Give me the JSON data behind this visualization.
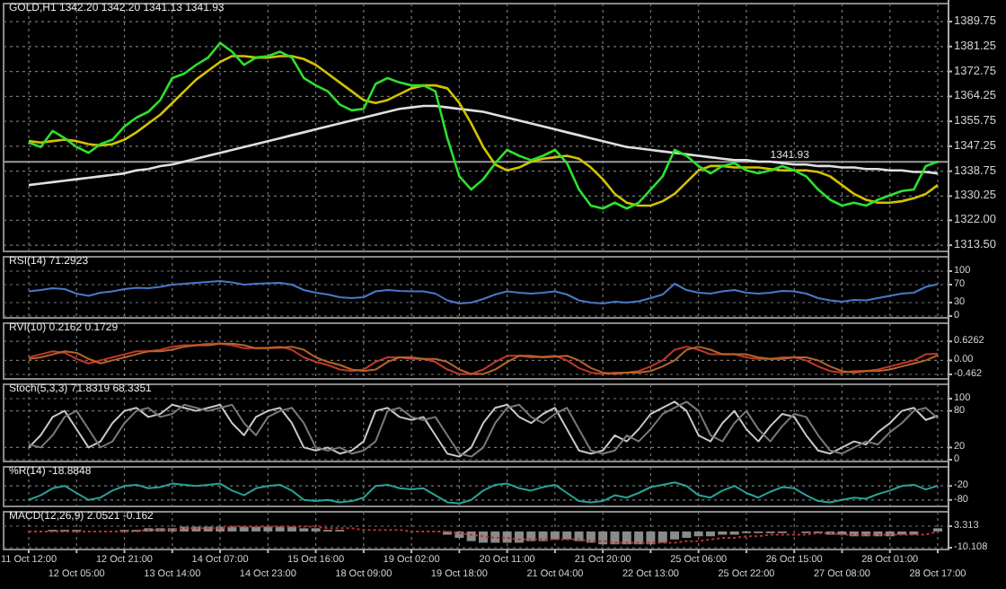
{
  "chart_data": [
    {
      "type": "line",
      "title": "GOLD,H1 1342.20 1342.20 1341.13 1341.93",
      "categories": [
        "11 Oct 12:00",
        null,
        null,
        null,
        "12 Oct 05:00",
        null,
        null,
        null,
        "12 Oct 21:00",
        null,
        null,
        null,
        "13 Oct 14:00",
        null,
        null,
        null,
        "14 Oct 07:00",
        null,
        null,
        null,
        "14 Oct 23:00",
        null,
        null,
        null,
        "15 Oct 16:00",
        null,
        null,
        null,
        "18 Oct 09:00",
        null,
        null,
        null,
        "19 Oct 02:00",
        null,
        null,
        null,
        "19 Oct 18:00",
        null,
        null,
        null,
        "20 Oct 11:00",
        null,
        null,
        null,
        "21 Oct 04:00",
        null,
        null,
        null,
        "21 Oct 20:00",
        null,
        null,
        null,
        "22 Oct 13:00",
        null,
        null,
        null,
        "25 Oct 06:00",
        null,
        null,
        null,
        "25 Oct 22:00",
        null,
        null,
        null,
        "26 Oct 15:00",
        null,
        null,
        null,
        "27 Oct 08:00",
        null,
        null,
        null,
        "28 Oct 01:00",
        null,
        null,
        null,
        "28 Oct 17:00"
      ],
      "ylim": [
        1312,
        1391
      ],
      "yticks": [
        1389.75,
        1381.25,
        1372.75,
        1364.25,
        1355.75,
        1347.25,
        1338.75,
        1330.25,
        {
          "value": 1322,
          "label": "1322.00"
        },
        {
          "value": 1313.5,
          "label": "1313.50"
        }
      ],
      "grid": true,
      "tick_labels": "y",
      "ref_lines": [
        {
          "axis": "y",
          "value": 1341.93,
          "label": "1341.93",
          "color": "#9a9a9a"
        }
      ],
      "series": [
        {
          "color": "#e0e0e0",
          "values": [
            1334,
            1334.5,
            1335,
            1335.5,
            1336,
            1336.5,
            1337,
            1337.5,
            1338,
            1339,
            1339.5,
            1340.5,
            1341,
            1342,
            1343,
            1344,
            1345,
            1346,
            1347,
            1348,
            1349,
            1350,
            1351,
            1352,
            1353,
            1354,
            1355,
            1356,
            1357,
            1358,
            1359,
            1360,
            1360.5,
            1361,
            1361,
            1360.5,
            1360,
            1359.5,
            1359,
            1358,
            1357,
            1356,
            1355,
            1354,
            1353,
            1352,
            1351,
            1350,
            1349,
            1348,
            1347,
            1346.5,
            1346,
            1345.5,
            1345,
            1344.5,
            1344,
            1343.5,
            1343,
            1342.5,
            1342.5,
            1342,
            1342,
            1341.5,
            1341,
            1341,
            1340.5,
            1340.5,
            1340,
            1340,
            1339.5,
            1339.5,
            1339,
            1339,
            1338.5,
            1338.5,
            1338
          ]
        },
        {
          "color": "#d4c200",
          "values": [
            1349,
            1348.5,
            1349,
            1349.5,
            1349,
            1348,
            1347.5,
            1348,
            1349.5,
            1352,
            1355,
            1358,
            1362,
            1366,
            1370,
            1373,
            1376,
            1378,
            1378,
            1377.5,
            1377.5,
            1378,
            1378,
            1377,
            1375,
            1372,
            1369,
            1366,
            1363,
            1362,
            1363,
            1365,
            1367,
            1368,
            1368,
            1367,
            1362,
            1355,
            1347,
            1341,
            1339,
            1340,
            1342,
            1343,
            1343.5,
            1344,
            1343,
            1340,
            1336,
            1331,
            1328,
            1327,
            1327,
            1328.5,
            1331,
            1335,
            1339,
            1340.5,
            1340.5,
            1340,
            1340,
            1340,
            1339.5,
            1339,
            1339,
            1339,
            1338.5,
            1337,
            1334,
            1331,
            1329,
            1328,
            1328,
            1328.5,
            1329.5,
            1331,
            1334
          ]
        },
        {
          "color": "#2ee02e",
          "values": [
            1348.5,
            1347,
            1352.5,
            1350,
            1347,
            1345,
            1348,
            1349.5,
            1354,
            1357,
            1359,
            1363,
            1370.5,
            1372,
            1375,
            1377.5,
            1382.5,
            1379.5,
            1375,
            1377.5,
            1378,
            1379.5,
            1377.5,
            1370.5,
            1368,
            1366,
            1361.5,
            1359.5,
            1360,
            1368.5,
            1370.5,
            1369,
            1368,
            1368,
            1366,
            1350,
            1337,
            1332.5,
            1336,
            1341.5,
            1346,
            1344,
            1342.5,
            1344,
            1346,
            1341.5,
            1332.5,
            1327,
            1326,
            1328,
            1326,
            1328,
            1332.5,
            1337,
            1346,
            1344,
            1340.5,
            1338,
            1340.5,
            1341.5,
            1339,
            1338,
            1339,
            1340.5,
            1339,
            1337,
            1332.5,
            1329,
            1327,
            1328,
            1327,
            1329,
            1330.5,
            1332,
            1332.5,
            1340.5,
            1342
          ]
        }
      ]
    },
    {
      "type": "line",
      "title": "RSI(14) 71.2923",
      "categories": [
        "11 Oct 12:00",
        null,
        null,
        null,
        "12 Oct 05:00",
        null,
        null,
        null,
        "12 Oct 21:00",
        null,
        null,
        null,
        "13 Oct 14:00",
        null,
        null,
        null,
        "14 Oct 07:00",
        null,
        null,
        null,
        "14 Oct 23:00",
        null,
        null,
        null,
        "15 Oct 16:00",
        null,
        null,
        null,
        "18 Oct 09:00",
        null,
        null,
        null,
        "19 Oct 02:00",
        null,
        null,
        null,
        "19 Oct 18:00",
        null,
        null,
        null,
        "20 Oct 11:00",
        null,
        null,
        null,
        "21 Oct 04:00",
        null,
        null,
        null,
        "21 Oct 20:00",
        null,
        null,
        null,
        "22 Oct 13:00",
        null,
        null,
        null,
        "25 Oct 06:00",
        null,
        null,
        null,
        "25 Oct 22:00",
        null,
        null,
        null,
        "26 Oct 15:00",
        null,
        null,
        null,
        "27 Oct 08:00",
        null,
        null,
        null,
        "28 Oct 01:00",
        null,
        null,
        null,
        "28 Oct 17:00"
      ],
      "ylim": [
        0,
        100
      ],
      "yticks": [
        100,
        70,
        30,
        0
      ],
      "grid": true,
      "tick_labels": "y",
      "series": [
        {
          "color": "#4a78c8",
          "values": [
            55,
            58,
            62,
            60,
            50,
            45,
            52,
            55,
            60,
            63,
            62,
            65,
            70,
            72,
            74,
            76,
            78,
            75,
            70,
            72,
            73,
            74,
            70,
            58,
            52,
            48,
            42,
            40,
            42,
            55,
            58,
            56,
            55,
            55,
            50,
            35,
            28,
            30,
            38,
            48,
            55,
            52,
            50,
            52,
            55,
            48,
            35,
            30,
            28,
            32,
            30,
            33,
            40,
            48,
            72,
            58,
            52,
            50,
            55,
            58,
            52,
            50,
            52,
            56,
            55,
            50,
            40,
            35,
            32,
            36,
            35,
            40,
            45,
            50,
            52,
            65,
            71
          ]
        }
      ]
    },
    {
      "type": "line",
      "title": "RVI(10) 0.2162 0.1729",
      "categories": [
        "11 Oct 12:00",
        null,
        null,
        null,
        "12 Oct 05:00",
        null,
        null,
        null,
        "12 Oct 21:00",
        null,
        null,
        null,
        "13 Oct 14:00",
        null,
        null,
        null,
        "14 Oct 07:00",
        null,
        null,
        null,
        "14 Oct 23:00",
        null,
        null,
        null,
        "15 Oct 16:00",
        null,
        null,
        null,
        "18 Oct 09:00",
        null,
        null,
        null,
        "19 Oct 02:00",
        null,
        null,
        null,
        "19 Oct 18:00",
        null,
        null,
        null,
        "20 Oct 11:00",
        null,
        null,
        null,
        "21 Oct 04:00",
        null,
        null,
        null,
        "21 Oct 20:00",
        null,
        null,
        null,
        "22 Oct 13:00",
        null,
        null,
        null,
        "25 Oct 06:00",
        null,
        null,
        null,
        "25 Oct 22:00",
        null,
        null,
        null,
        "26 Oct 15:00",
        null,
        null,
        null,
        "27 Oct 08:00",
        null,
        null,
        null,
        "28 Oct 01:00",
        null,
        null,
        null,
        "28 Oct 17:00"
      ],
      "ylim": [
        -0.55,
        0.75
      ],
      "yticks": [
        0.6262,
        {
          "value": 0,
          "label": "0.00"
        },
        -0.462
      ],
      "grid": true,
      "tick_labels": "y",
      "series": [
        {
          "color": "#c0392b",
          "values": [
            0.1,
            0.2,
            0.3,
            0.25,
            0.05,
            -0.1,
            0,
            0.1,
            0.2,
            0.3,
            0.3,
            0.35,
            0.45,
            0.5,
            0.5,
            0.55,
            0.55,
            0.5,
            0.4,
            0.4,
            0.42,
            0.45,
            0.35,
            0.1,
            -0.05,
            -0.15,
            -0.3,
            -0.35,
            -0.3,
            -0.05,
            0.1,
            0.1,
            0.05,
            0.05,
            -0.05,
            -0.3,
            -0.45,
            -0.45,
            -0.3,
            -0.05,
            0.15,
            0.15,
            0.1,
            0.12,
            0.15,
            0,
            -0.25,
            -0.4,
            -0.45,
            -0.4,
            -0.4,
            -0.35,
            -0.2,
            0,
            0.35,
            0.45,
            0.35,
            0.2,
            0.2,
            0.2,
            0.1,
            0.05,
            0.05,
            0.1,
            0.1,
            0,
            -0.2,
            -0.35,
            -0.4,
            -0.35,
            -0.35,
            -0.3,
            -0.2,
            -0.1,
            0,
            0.2,
            0.22
          ]
        },
        {
          "color": "#b8652a",
          "values": [
            0.05,
            0.1,
            0.2,
            0.3,
            0.25,
            0.05,
            -0.1,
            0,
            0.1,
            0.2,
            0.3,
            0.3,
            0.35,
            0.45,
            0.5,
            0.5,
            0.55,
            0.55,
            0.5,
            0.4,
            0.4,
            0.42,
            0.45,
            0.35,
            0.1,
            -0.05,
            -0.15,
            -0.3,
            -0.35,
            -0.3,
            -0.05,
            0.1,
            0.1,
            0.05,
            0.05,
            -0.05,
            -0.3,
            -0.45,
            -0.45,
            -0.3,
            -0.05,
            0.15,
            0.15,
            0.1,
            0.12,
            0.15,
            0,
            -0.25,
            -0.4,
            -0.45,
            -0.4,
            -0.4,
            -0.35,
            -0.2,
            0,
            0.35,
            0.45,
            0.35,
            0.2,
            0.2,
            0.2,
            0.1,
            0.05,
            0.05,
            0.1,
            0.1,
            0,
            -0.2,
            -0.35,
            -0.4,
            -0.35,
            -0.35,
            -0.3,
            -0.2,
            -0.1,
            0,
            0.17
          ]
        }
      ]
    },
    {
      "type": "line",
      "title": "Stoch(5,3,3) 71.8319 68.3351",
      "categories": [
        "11 Oct 12:00",
        null,
        null,
        null,
        "12 Oct 05:00",
        null,
        null,
        null,
        "12 Oct 21:00",
        null,
        null,
        null,
        "13 Oct 14:00",
        null,
        null,
        null,
        "14 Oct 07:00",
        null,
        null,
        null,
        "14 Oct 23:00",
        null,
        null,
        null,
        "15 Oct 16:00",
        null,
        null,
        null,
        "18 Oct 09:00",
        null,
        null,
        null,
        "19 Oct 02:00",
        null,
        null,
        null,
        "19 Oct 18:00",
        null,
        null,
        null,
        "20 Oct 11:00",
        null,
        null,
        null,
        "21 Oct 04:00",
        null,
        null,
        null,
        "21 Oct 20:00",
        null,
        null,
        null,
        "22 Oct 13:00",
        null,
        null,
        null,
        "25 Oct 06:00",
        null,
        null,
        null,
        "25 Oct 22:00",
        null,
        null,
        null,
        "26 Oct 15:00",
        null,
        null,
        null,
        "27 Oct 08:00",
        null,
        null,
        null,
        "28 Oct 01:00",
        null,
        null,
        null,
        "28 Oct 17:00"
      ],
      "ylim": [
        0,
        100
      ],
      "yticks": [
        100,
        80,
        20,
        0
      ],
      "grid": true,
      "tick_labels": "y",
      "series": [
        {
          "color": "#c8c8c8",
          "values": [
            20,
            40,
            70,
            80,
            50,
            20,
            30,
            60,
            80,
            85,
            70,
            75,
            90,
            85,
            80,
            85,
            90,
            60,
            40,
            70,
            80,
            85,
            60,
            20,
            15,
            20,
            10,
            15,
            30,
            80,
            85,
            70,
            65,
            70,
            40,
            10,
            5,
            20,
            60,
            85,
            90,
            70,
            60,
            75,
            85,
            50,
            15,
            10,
            15,
            40,
            30,
            50,
            75,
            85,
            95,
            80,
            40,
            30,
            60,
            80,
            50,
            30,
            55,
            75,
            70,
            40,
            15,
            10,
            20,
            30,
            25,
            45,
            60,
            80,
            85,
            65,
            72
          ]
        },
        {
          "color": "#7a7a7a",
          "values": [
            25,
            20,
            40,
            70,
            80,
            50,
            20,
            30,
            60,
            80,
            85,
            70,
            75,
            90,
            85,
            80,
            85,
            90,
            60,
            40,
            70,
            80,
            85,
            60,
            20,
            15,
            20,
            10,
            15,
            30,
            80,
            85,
            70,
            65,
            70,
            40,
            10,
            5,
            20,
            60,
            85,
            90,
            70,
            60,
            75,
            85,
            50,
            15,
            10,
            15,
            40,
            30,
            50,
            75,
            85,
            95,
            80,
            40,
            30,
            60,
            80,
            50,
            30,
            55,
            75,
            70,
            40,
            15,
            10,
            20,
            30,
            25,
            45,
            60,
            80,
            85,
            68
          ]
        }
      ]
    },
    {
      "type": "line",
      "title": "%R(14) -18.8848",
      "categories": [
        "11 Oct 12:00",
        null,
        null,
        null,
        "12 Oct 05:00",
        null,
        null,
        null,
        "12 Oct 21:00",
        null,
        null,
        null,
        "13 Oct 14:00",
        null,
        null,
        null,
        "14 Oct 07:00",
        null,
        null,
        null,
        "14 Oct 23:00",
        null,
        null,
        null,
        "15 Oct 16:00",
        null,
        null,
        null,
        "18 Oct 09:00",
        null,
        null,
        null,
        "19 Oct 02:00",
        null,
        null,
        null,
        "19 Oct 18:00",
        null,
        null,
        null,
        "20 Oct 11:00",
        null,
        null,
        null,
        "21 Oct 04:00",
        null,
        null,
        null,
        "21 Oct 20:00",
        null,
        null,
        null,
        "22 Oct 13:00",
        null,
        null,
        null,
        "25 Oct 06:00",
        null,
        null,
        null,
        "25 Oct 22:00",
        null,
        null,
        null,
        "26 Oct 15:00",
        null,
        null,
        null,
        "27 Oct 08:00",
        null,
        null,
        null,
        "28 Oct 01:00",
        null,
        null,
        null,
        "28 Oct 17:00"
      ],
      "ylim": [
        -100,
        0
      ],
      "yticks": [
        -20,
        -80
      ],
      "grid": true,
      "tick_labels": "y",
      "series": [
        {
          "color": "#2aa198",
          "values": [
            -80,
            -60,
            -30,
            -20,
            -50,
            -80,
            -70,
            -40,
            -20,
            -15,
            -30,
            -25,
            -10,
            -15,
            -20,
            -15,
            -10,
            -40,
            -60,
            -30,
            -20,
            -15,
            -40,
            -80,
            -85,
            -80,
            -90,
            -85,
            -70,
            -20,
            -15,
            -30,
            -35,
            -30,
            -60,
            -90,
            -95,
            -80,
            -40,
            -15,
            -10,
            -30,
            -40,
            -25,
            -15,
            -50,
            -85,
            -90,
            -85,
            -60,
            -70,
            -50,
            -25,
            -15,
            -5,
            -20,
            -60,
            -70,
            -40,
            -20,
            -50,
            -70,
            -45,
            -25,
            -30,
            -60,
            -85,
            -90,
            -80,
            -70,
            -75,
            -55,
            -40,
            -20,
            -15,
            -35,
            -19
          ]
        }
      ]
    },
    {
      "type": "line",
      "title": "MACD(12,26,9) 2.0521 -0.162",
      "categories": [
        "11 Oct 12:00",
        null,
        null,
        null,
        "12 Oct 05:00",
        null,
        null,
        null,
        "12 Oct 21:00",
        null,
        null,
        null,
        "13 Oct 14:00",
        null,
        null,
        null,
        "14 Oct 07:00",
        null,
        null,
        null,
        "14 Oct 23:00",
        null,
        null,
        null,
        "15 Oct 16:00",
        null,
        null,
        null,
        "18 Oct 09:00",
        null,
        null,
        null,
        "19 Oct 02:00",
        null,
        null,
        null,
        "19 Oct 18:00",
        null,
        null,
        null,
        "20 Oct 11:00",
        null,
        null,
        null,
        "21 Oct 04:00",
        null,
        null,
        null,
        "21 Oct 20:00",
        null,
        null,
        null,
        "22 Oct 13:00",
        null,
        null,
        null,
        "25 Oct 06:00",
        null,
        null,
        null,
        "25 Oct 22:00",
        null,
        null,
        null,
        "26 Oct 15:00",
        null,
        null,
        null,
        "27 Oct 08:00",
        null,
        null,
        null,
        "28 Oct 01:00",
        null,
        null,
        null,
        "28 Oct 17:00"
      ],
      "ylim": [
        -10.108,
        3.313
      ],
      "yticks": [
        3.313,
        -10.108
      ],
      "grid": true,
      "series": [
        {
          "type": "bar",
          "color": "#8a8a8a",
          "values": [
            0,
            0,
            1,
            1,
            1,
            0,
            0,
            0,
            1,
            1,
            2,
            2,
            2,
            3,
            3,
            3,
            3,
            3,
            3,
            3,
            3,
            3,
            3,
            2,
            2,
            1,
            1,
            0,
            0,
            0,
            0,
            0,
            0,
            0,
            0,
            -2,
            -4,
            -6,
            -7,
            -7,
            -7,
            -7,
            -6,
            -6,
            -5,
            -5,
            -6,
            -7,
            -8,
            -8,
            -8,
            -8,
            -8,
            -7,
            -5,
            -4,
            -3,
            -3,
            -2,
            -2,
            -1,
            -1,
            -1,
            -1,
            0,
            -1,
            -1,
            -2,
            -2,
            -3,
            -3,
            -3,
            -3,
            -2,
            -2,
            0,
            2
          ]
        },
        {
          "color": "#c03030",
          "line_style": "dotted",
          "values": [
            0,
            0,
            0,
            0,
            0,
            0,
            0,
            0,
            0,
            0,
            1,
            1,
            1,
            2,
            2,
            2,
            2,
            3,
            3,
            3,
            3,
            3,
            3,
            3,
            3,
            2,
            2,
            2,
            1,
            1,
            1,
            1,
            0,
            0,
            0,
            0,
            -1,
            -2,
            -3,
            -4,
            -4,
            -5,
            -5,
            -5,
            -5,
            -5,
            -5,
            -6,
            -6,
            -7,
            -7,
            -7,
            -7,
            -7,
            -7,
            -6,
            -6,
            -5,
            -4,
            -4,
            -3,
            -3,
            -2,
            -2,
            -2,
            -2,
            -1,
            -1,
            -2,
            -2,
            -2,
            -2,
            -2,
            -2,
            -2,
            -2,
            0
          ]
        }
      ]
    }
  ]
}
